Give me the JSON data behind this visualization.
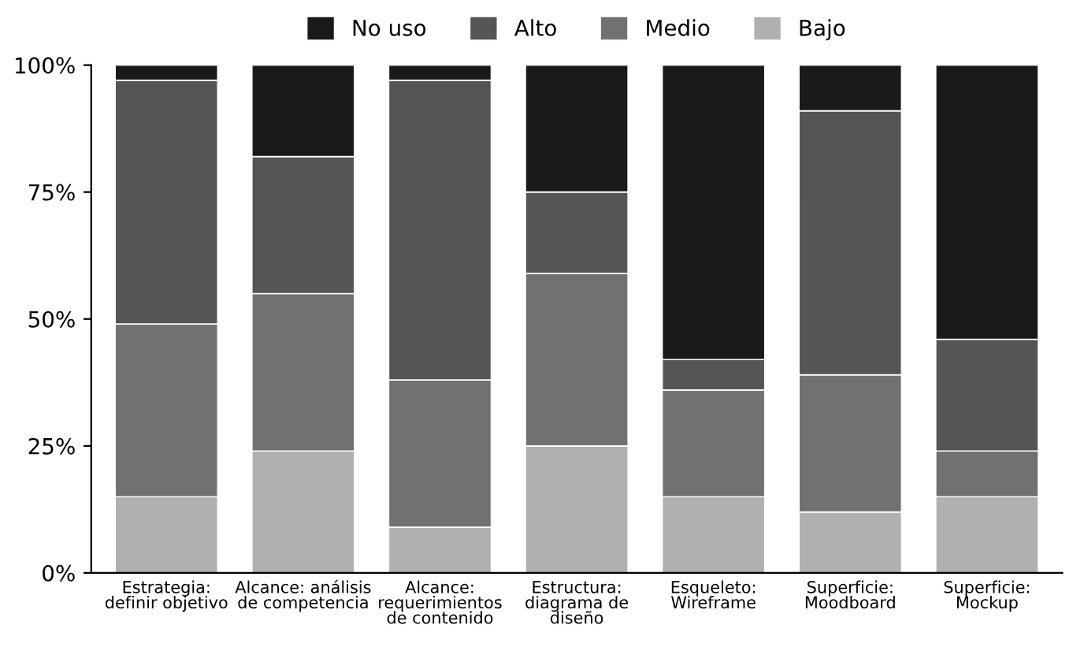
{
  "chart_data": {
    "type": "bar",
    "stacked": true,
    "categories": [
      "Estrategia:\ndefinir objetivo",
      "Alcance: análisis\nde competencia",
      "Alcance:\nrequerimientos\nde contenido",
      "Estructura:\ndiagrama de\ndiseño",
      "Esqueleto:\nWireframe",
      "Superficie:\nMoodboard",
      "Superficie:\nMockup"
    ],
    "series": [
      {
        "name": "Bajo",
        "color": "#b0b0b0",
        "values": [
          15,
          24,
          9,
          25,
          15,
          12,
          15
        ]
      },
      {
        "name": "Medio",
        "color": "#717171",
        "values": [
          34,
          31,
          29,
          34,
          21,
          27,
          9
        ]
      },
      {
        "name": "Alto",
        "color": "#555555",
        "values": [
          48,
          27,
          59,
          16,
          6,
          52,
          22
        ]
      },
      {
        "name": "No uso",
        "color": "#1a1a1a",
        "values": [
          3,
          18,
          3,
          25,
          58,
          9,
          54
        ]
      }
    ],
    "ylim": [
      0,
      100
    ],
    "yticks": [
      {
        "value": 0,
        "label": "0%"
      },
      {
        "value": 25,
        "label": "25%"
      },
      {
        "value": 50,
        "label": "50%"
      },
      {
        "value": 75,
        "label": "75%"
      },
      {
        "value": 100,
        "label": "100%"
      }
    ],
    "legend": "top"
  }
}
